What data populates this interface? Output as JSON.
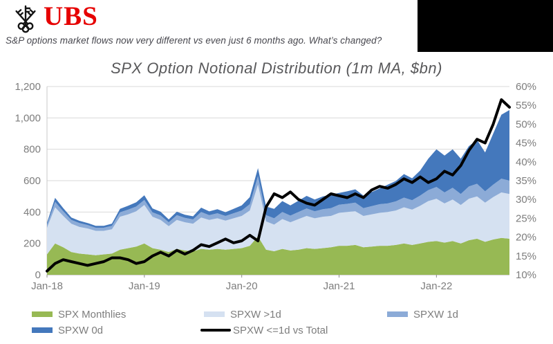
{
  "header": {
    "brand": "UBS",
    "brand_color": "#e60000",
    "logo_icon": "ubs-three-keys-icon",
    "subtitle": "S&P options market flows now very different vs even just 6 months ago. What’s changed?"
  },
  "redaction_box": {
    "present": true,
    "color": "#000000"
  },
  "chart_data": {
    "type": "area",
    "subtype": "stacked-area-with-secondary-axis-line",
    "title": "SPX Option Notional Distribution (1m MA, $bn)",
    "title_color": "#58585a",
    "grid": true,
    "months": [
      "Jan-18",
      "Feb-18",
      "Mar-18",
      "Apr-18",
      "May-18",
      "Jun-18",
      "Jul-18",
      "Aug-18",
      "Sep-18",
      "Oct-18",
      "Nov-18",
      "Dec-18",
      "Jan-19",
      "Feb-19",
      "Mar-19",
      "Apr-19",
      "May-19",
      "Jun-19",
      "Jul-19",
      "Aug-19",
      "Sep-19",
      "Oct-19",
      "Nov-19",
      "Dec-19",
      "Jan-20",
      "Feb-20",
      "Mar-20",
      "Apr-20",
      "May-20",
      "Jun-20",
      "Jul-20",
      "Aug-20",
      "Sep-20",
      "Oct-20",
      "Nov-20",
      "Dec-20",
      "Jan-21",
      "Feb-21",
      "Mar-21",
      "Apr-21",
      "May-21",
      "Jun-21",
      "Jul-21",
      "Aug-21",
      "Sep-21",
      "Oct-21",
      "Nov-21",
      "Dec-21",
      "Jan-22",
      "Feb-22",
      "Mar-22",
      "Apr-22",
      "May-22",
      "Jun-22",
      "Jul-22",
      "Aug-22",
      "Sep-22",
      "Oct-22"
    ],
    "x_tick_labels": [
      "Jan-18",
      "Jan-19",
      "Jan-20",
      "Jan-21",
      "Jan-22"
    ],
    "x_tick_month_indices": [
      0,
      12,
      24,
      36,
      48
    ],
    "left_axis": {
      "min": 0,
      "max": 1200,
      "step": 200,
      "tick_labels": [
        "1,200",
        "1,000",
        "800",
        "600",
        "400",
        "200",
        "0"
      ]
    },
    "right_axis": {
      "min": 10,
      "max": 60,
      "step": 5,
      "tick_labels": [
        "60%",
        "55%",
        "50%",
        "45%",
        "40%",
        "35%",
        "30%",
        "25%",
        "20%",
        "15%",
        "10%"
      ]
    },
    "series": [
      {
        "name": "SPX Monthlies",
        "type": "area",
        "axis": "left",
        "color": "#97b954",
        "values": [
          130,
          200,
          175,
          145,
          135,
          130,
          125,
          130,
          135,
          160,
          170,
          180,
          200,
          170,
          160,
          145,
          165,
          155,
          150,
          165,
          160,
          165,
          160,
          165,
          170,
          185,
          245,
          160,
          150,
          165,
          155,
          160,
          170,
          165,
          170,
          175,
          185,
          185,
          190,
          175,
          180,
          185,
          185,
          190,
          200,
          190,
          200,
          210,
          215,
          205,
          215,
          200,
          220,
          230,
          210,
          225,
          235,
          230
        ]
      },
      {
        "name": "SPXW >1d",
        "type": "area",
        "axis": "left",
        "color": "#d5e1f1",
        "values": [
          170,
          230,
          200,
          180,
          170,
          165,
          155,
          150,
          155,
          210,
          215,
          225,
          245,
          200,
          190,
          165,
          185,
          180,
          175,
          200,
          190,
          195,
          185,
          195,
          205,
          225,
          330,
          180,
          170,
          190,
          180,
          195,
          205,
          195,
          200,
          200,
          210,
          215,
          215,
          200,
          205,
          210,
          215,
          220,
          230,
          225,
          240,
          260,
          270,
          250,
          265,
          245,
          265,
          270,
          250,
          270,
          290,
          285
        ]
      },
      {
        "name": "SPXW 1d",
        "type": "area",
        "axis": "left",
        "color": "#8cabd7",
        "values": [
          20,
          35,
          30,
          25,
          25,
          22,
          20,
          20,
          22,
          28,
          30,
          30,
          32,
          28,
          28,
          25,
          30,
          28,
          28,
          35,
          30,
          32,
          30,
          32,
          35,
          40,
          55,
          40,
          40,
          45,
          42,
          45,
          48,
          45,
          48,
          50,
          52,
          52,
          55,
          50,
          52,
          55,
          55,
          58,
          62,
          60,
          65,
          70,
          75,
          70,
          75,
          70,
          78,
          80,
          72,
          80,
          88,
          85
        ]
      },
      {
        "name": "SPXW 0d",
        "type": "area",
        "axis": "left",
        "color": "#4478bc",
        "values": [
          12,
          25,
          20,
          15,
          14,
          13,
          12,
          12,
          14,
          22,
          25,
          27,
          30,
          25,
          24,
          18,
          22,
          20,
          20,
          28,
          24,
          26,
          24,
          28,
          32,
          45,
          50,
          55,
          60,
          70,
          65,
          72,
          80,
          75,
          82,
          85,
          75,
          80,
          85,
          80,
          90,
          100,
          120,
          130,
          150,
          140,
          160,
          200,
          240,
          235,
          245,
          225,
          257,
          280,
          248,
          325,
          407,
          450
        ]
      },
      {
        "name": "SPXW <=1d vs Total",
        "type": "line",
        "axis": "right",
        "color": "#000000",
        "values": [
          11,
          13,
          14,
          13.5,
          13,
          12.5,
          13,
          13.5,
          14.5,
          14.5,
          14,
          13,
          13.5,
          15,
          16,
          15,
          16.5,
          15.5,
          16.5,
          18,
          17.5,
          18.5,
          19.5,
          18.5,
          19,
          20.5,
          19,
          28,
          31.5,
          30.5,
          32,
          30,
          29,
          28.5,
          30,
          31.5,
          31,
          30.5,
          31.5,
          30.5,
          32.5,
          33.5,
          33,
          34,
          35.5,
          34.5,
          36,
          34.5,
          35.5,
          37.5,
          36.5,
          39,
          43,
          46,
          45,
          50,
          56.5,
          54.5
        ]
      }
    ],
    "legend_position": "bottom"
  },
  "legend": {
    "rows": 2,
    "items": [
      "SPX Monthlies",
      "SPXW >1d",
      "SPXW 1d",
      "SPXW 0d",
      "SPXW <=1d vs Total"
    ]
  }
}
